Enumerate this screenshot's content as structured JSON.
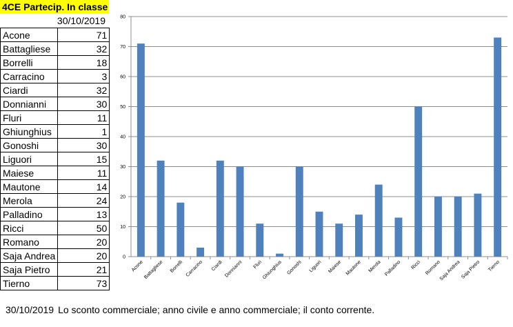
{
  "sheet": {
    "title": "4CE Partecip. In classe",
    "date_header": "30/10/2019",
    "rows": [
      {
        "name": "Acone",
        "value": "71"
      },
      {
        "name": "Battagliese",
        "value": "32"
      },
      {
        "name": "Borrelli",
        "value": "18"
      },
      {
        "name": "Carracino",
        "value": "3"
      },
      {
        "name": "Ciardi",
        "value": "32"
      },
      {
        "name": "Donnianni",
        "value": "30"
      },
      {
        "name": "Fluri",
        "value": "11"
      },
      {
        "name": "Ghiunghius",
        "value": "1"
      },
      {
        "name": "Gonoshi",
        "value": "30"
      },
      {
        "name": "Liguori",
        "value": "15"
      },
      {
        "name": "Maiese",
        "value": "11"
      },
      {
        "name": "Mautone",
        "value": "14"
      },
      {
        "name": "Merola",
        "value": "24"
      },
      {
        "name": "Palladino",
        "value": "13"
      },
      {
        "name": "Ricci",
        "value": "50"
      },
      {
        "name": "Romano",
        "value": "20"
      },
      {
        "name": "Saja Andrea",
        "value": "20"
      },
      {
        "name": "Saja Pietro",
        "value": "21"
      },
      {
        "name": "Tierno",
        "value": "73"
      }
    ]
  },
  "caption": {
    "date": "30/10/2019",
    "text": "Lo sconto commerciale; anno civile e anno commerciale; il conto corrente."
  },
  "colors": {
    "bar": "#4f81bd",
    "grid": "#8c8c8c",
    "highlight": "#ffff00"
  },
  "chart_data": {
    "type": "bar",
    "title": "",
    "xlabel": "",
    "ylabel": "",
    "categories": [
      "Acone",
      "Battagliese",
      "Borrelli",
      "Carracino",
      "Ciardi",
      "Donnianni",
      "Fluri",
      "Ghiunghius",
      "Gonoshi",
      "Liguori",
      "Maiese",
      "Mautone",
      "Merola",
      "Palladino",
      "Ricci",
      "Romano",
      "Saja Andrea",
      "Saja Pietro",
      "Tierno"
    ],
    "values": [
      71,
      32,
      18,
      3,
      32,
      30,
      11,
      1,
      30,
      15,
      11,
      14,
      24,
      13,
      50,
      20,
      20,
      21,
      73
    ],
    "ylim": [
      0,
      80
    ],
    "yticks": [
      0,
      10,
      20,
      30,
      40,
      50,
      60,
      70,
      80
    ],
    "grid": true,
    "legend": "none"
  }
}
